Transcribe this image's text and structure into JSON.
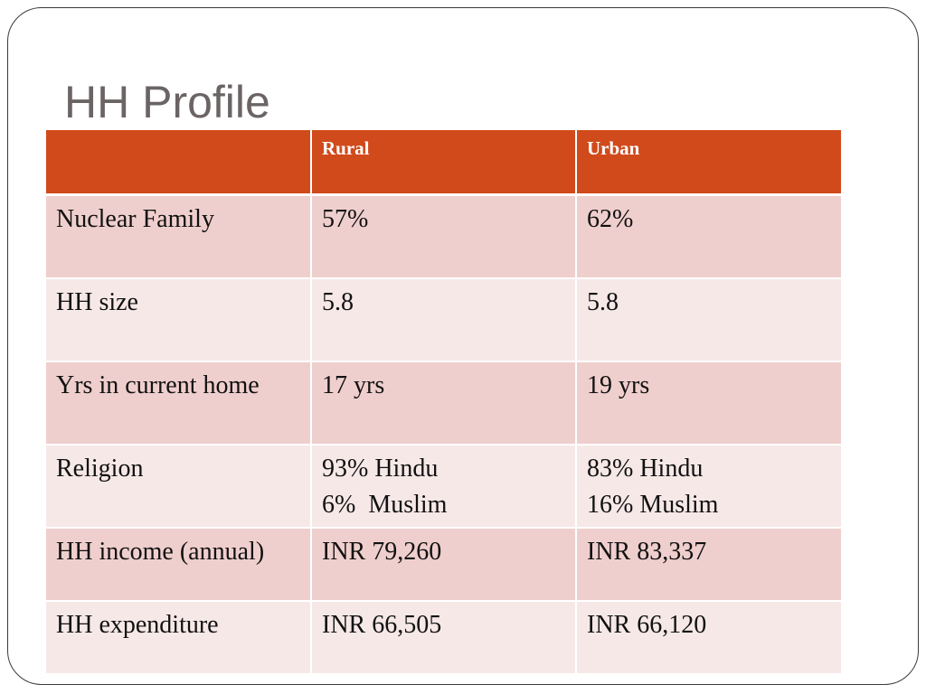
{
  "slide": {
    "title": "HH Profile"
  },
  "table": {
    "columns": [
      "",
      "Rural",
      "Urban"
    ],
    "rows": [
      {
        "label": "Nuclear Family",
        "rural": [
          "57%"
        ],
        "urban": [
          "62%"
        ]
      },
      {
        "label": "HH size",
        "rural": [
          "5.8"
        ],
        "urban": [
          "5.8"
        ]
      },
      {
        "label": "Yrs in current home",
        "rural": [
          "17 yrs"
        ],
        "urban": [
          "19 yrs"
        ]
      },
      {
        "label": "Religion",
        "rural": [
          "93% Hindu",
          "6%  Muslim"
        ],
        "urban": [
          "83% Hindu",
          "16% Muslim"
        ]
      },
      {
        "label": "HH income (annual)",
        "rural": [
          "INR 79,260"
        ],
        "urban": [
          "INR 83,337"
        ]
      },
      {
        "label": "HH expenditure",
        "rural": [
          "INR 66,505"
        ],
        "urban": [
          "INR 66,120"
        ]
      }
    ]
  },
  "colors": {
    "header_bg": "#d14a1b",
    "row_dark": "#efcfcd",
    "row_light": "#f7e8e8",
    "title_text": "#6b6464"
  }
}
